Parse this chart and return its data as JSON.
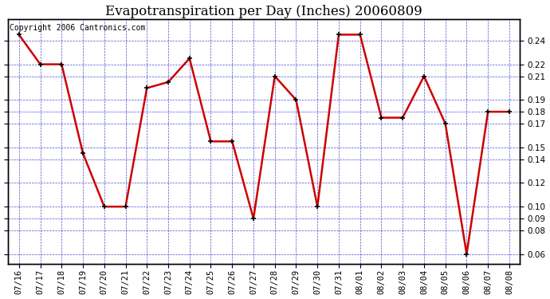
{
  "title": "Evapotranspiration per Day (Inches) 20060809",
  "copyright_text": "Copyright 2006 Cantronics.com",
  "x_labels": [
    "07/16",
    "07/17",
    "07/18",
    "07/19",
    "07/20",
    "07/21",
    "07/22",
    "07/23",
    "07/24",
    "07/25",
    "07/26",
    "07/27",
    "07/28",
    "07/29",
    "07/30",
    "07/31",
    "08/01",
    "08/02",
    "08/03",
    "08/04",
    "08/05",
    "08/06",
    "08/07",
    "08/08"
  ],
  "y_values": [
    0.245,
    0.22,
    0.22,
    0.145,
    0.1,
    0.1,
    0.2,
    0.205,
    0.225,
    0.155,
    0.155,
    0.09,
    0.21,
    0.19,
    0.1,
    0.245,
    0.245,
    0.175,
    0.175,
    0.21,
    0.17,
    0.06,
    0.18,
    0.18
  ],
  "ylim": [
    0.052,
    0.258
  ],
  "y_ticks": [
    0.06,
    0.08,
    0.09,
    0.1,
    0.12,
    0.14,
    0.15,
    0.17,
    0.18,
    0.19,
    0.21,
    0.22,
    0.24
  ],
  "line_color": "#cc0000",
  "marker_color": "#000000",
  "fig_bg_color": "#ffffff",
  "plot_bg_color": "#ffffff",
  "grid_color": "#0000cc",
  "title_fontsize": 12,
  "copyright_fontsize": 7,
  "tick_fontsize": 7.5
}
